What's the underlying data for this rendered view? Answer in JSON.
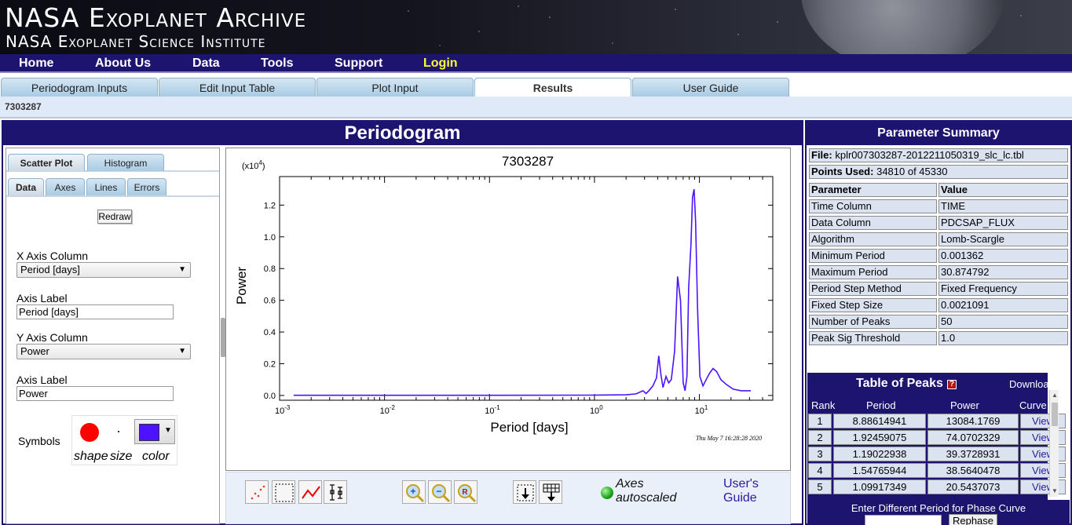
{
  "banner": {
    "title": "NASA Exoplanet Archive",
    "subtitle": "NASA Exoplanet Science Institute"
  },
  "nav": {
    "items": [
      "Home",
      "About Us",
      "Data",
      "Tools",
      "Support",
      "Login"
    ]
  },
  "tabs": [
    "Periodogram Inputs",
    "Edit Input Table",
    "Plot Input",
    "Results",
    "User Guide"
  ],
  "active_tab": "Results",
  "object_id": "7303287",
  "main": {
    "title": "Periodogram",
    "plot_tabs": [
      "Scatter Plot",
      "Histogram"
    ],
    "sub_tabs": [
      "Data",
      "Axes",
      "Lines",
      "Errors"
    ],
    "redraw_label": "Redraw",
    "x_axis_column_label": "X Axis Column",
    "x_axis_column_value": "Period [days]",
    "x_axis_label_label": "Axis Label",
    "x_axis_label_value": "Period [days]",
    "y_axis_column_label": "Y Axis Column",
    "y_axis_column_value": "Power",
    "y_axis_label_label": "Axis Label",
    "y_axis_label_value": "Power",
    "symbols_label": "Symbols",
    "symbol_caption_shape": "shape",
    "symbol_caption_size": "size",
    "symbol_caption_color": "color",
    "symbol_color": "#4d12ff",
    "symbol_shape_color": "#ff0000"
  },
  "tools": {
    "axes_status_line1": "Axes",
    "axes_status_line2": "autoscaled",
    "user_guide_line1": "User's",
    "user_guide_line2": "Guide",
    "icons": [
      "select-points-icon",
      "zoom-box-icon",
      "line-plot-icon",
      "error-bars-icon",
      "zoom-in-icon",
      "zoom-out-icon",
      "zoom-reset-icon",
      "save-plot-icon",
      "download-table-icon"
    ]
  },
  "chart_data": {
    "type": "line",
    "title": "7303287",
    "xlabel": "Period [days]",
    "ylabel": "Power",
    "x_scale": "log",
    "xlim": [
      0.001,
      50
    ],
    "ylim": [
      -300,
      13800
    ],
    "y_multiplier_label": "(x10",
    "y_multiplier_exp": "4",
    "y_ticks": [
      "0.0",
      "0.2",
      "0.4",
      "0.6",
      "0.8",
      "1.0",
      "1.2"
    ],
    "y_tick_values": [
      0,
      2000,
      4000,
      6000,
      8000,
      10000,
      12000
    ],
    "x_ticks": [
      {
        "base": "10",
        "exp": "-3",
        "value": 0.001
      },
      {
        "base": "10",
        "exp": "-2",
        "value": 0.01
      },
      {
        "base": "10",
        "exp": "-1",
        "value": 0.1
      },
      {
        "base": "10",
        "exp": "0",
        "value": 1
      },
      {
        "base": "10",
        "exp": "1",
        "value": 10
      }
    ],
    "timestamp": "Thu May  7 16:28:28 2020",
    "line_color": "#4d12ff",
    "series": [
      {
        "x": [
          0.001362,
          0.01,
          0.1,
          1.0,
          2.0,
          2.5,
          2.9,
          3.1,
          3.3,
          3.6,
          3.9,
          4.1,
          4.3,
          4.5,
          4.8,
          5.1,
          5.4,
          5.8,
          6.2,
          6.6,
          7.0,
          7.3,
          7.6,
          7.9,
          8.3,
          8.6,
          8.9,
          9.2,
          9.6,
          10.1,
          10.8,
          11.6,
          12.5,
          13.5,
          14.6,
          16.0,
          18.0,
          21.0,
          25.0,
          30.87
        ],
        "y": [
          10,
          10,
          10,
          20,
          40,
          100,
          300,
          120,
          300,
          600,
          1100,
          2500,
          1300,
          500,
          1200,
          800,
          1000,
          2800,
          7500,
          6000,
          800,
          300,
          1200,
          6800,
          9500,
          12500,
          13000,
          11000,
          5500,
          1200,
          600,
          1000,
          1400,
          1700,
          1500,
          1000,
          700,
          400,
          300,
          300
        ]
      }
    ]
  },
  "summary": {
    "title": "Parameter Summary",
    "file_label": "File:",
    "file_value": "kplr007303287-2012211050319_slc_lc.tbl",
    "points_label": "Points Used:",
    "points_value": "34810 of 45330",
    "header_param": "Parameter",
    "header_value": "Value",
    "rows": [
      {
        "param": "Time Column",
        "value": "TIME"
      },
      {
        "param": "Data Column",
        "value": "PDCSAP_FLUX"
      },
      {
        "param": "Algorithm",
        "value": "Lomb-Scargle"
      },
      {
        "param": "Minimum Period",
        "value": "0.001362"
      },
      {
        "param": "Maximum Period",
        "value": "30.874792"
      },
      {
        "param": "Period Step Method",
        "value": "Fixed Frequency"
      },
      {
        "param": "Fixed Step Size",
        "value": "0.0021091"
      },
      {
        "param": "Number of Peaks",
        "value": "50"
      },
      {
        "param": "Peak Sig Threshold",
        "value": "1.0"
      }
    ]
  },
  "peaks": {
    "title": "Table of Peaks",
    "help": "?",
    "download": "Download",
    "headers": [
      "Rank",
      "Period",
      "Power",
      "Curve"
    ],
    "rows": [
      {
        "rank": "1",
        "period": "8.88614941",
        "power": "13084.1769",
        "curve": "View"
      },
      {
        "rank": "2",
        "period": "1.92459075",
        "power": "74.0702329",
        "curve": "View"
      },
      {
        "rank": "3",
        "period": "1.19022938",
        "power": "39.3728931",
        "curve": "View"
      },
      {
        "rank": "4",
        "period": "1.54765944",
        "power": "38.5640478",
        "curve": "View"
      },
      {
        "rank": "5",
        "period": "1.09917349",
        "power": "20.5437073",
        "curve": "View"
      }
    ]
  },
  "phase": {
    "label": "Enter Different Period for Phase Curve",
    "input_value": "",
    "button": "Rephase"
  }
}
